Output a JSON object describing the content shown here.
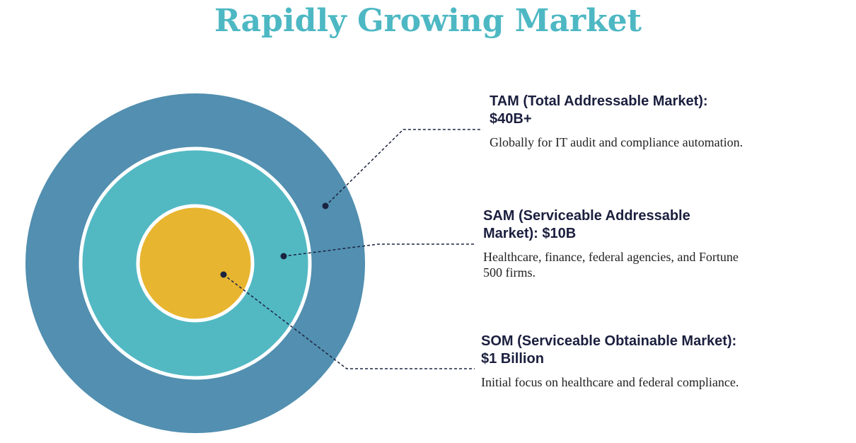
{
  "title": "Rapidly Growing Market",
  "items": [
    {
      "heading": "TAM (Total Addressable Market): $40B+",
      "description": "Globally for IT audit and compliance automation."
    },
    {
      "heading": "SAM (Serviceable Addressable Market): $10B",
      "description": "Healthcare, finance, federal agencies, and Fortune 500 firms."
    },
    {
      "heading": "SOM (Serviceable Obtainable Market): $1 Billion",
      "description": "Initial focus on healthcare and federal compliance."
    }
  ]
}
